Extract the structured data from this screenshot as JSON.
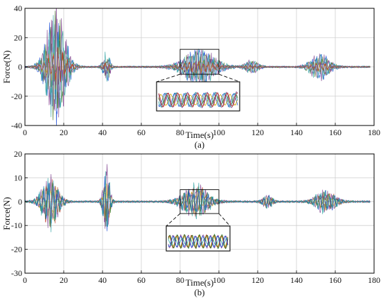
{
  "chart_data": [
    {
      "type": "line",
      "panel_label": "(a)",
      "xlabel": "Time(s)",
      "ylabel": "Force(N)",
      "xlim": [
        0,
        180
      ],
      "ylim": [
        -40,
        40
      ],
      "xticks": [
        0,
        20,
        40,
        60,
        80,
        100,
        120,
        140,
        160,
        180
      ],
      "yticks": [
        -40,
        -20,
        0,
        20,
        40
      ],
      "grid": true,
      "series_colors": [
        "#1f4fd8",
        "#c8a800",
        "#4a7a2a",
        "#7a3a8a",
        "#2aa0a0",
        "#c03a2a"
      ],
      "bursts": [
        {
          "center": 16,
          "width": 6,
          "amplitude": 38
        },
        {
          "center": 42,
          "width": 2,
          "amplitude": 10
        },
        {
          "center": 90,
          "width": 10,
          "amplitude": 11
        },
        {
          "center": 117,
          "width": 4,
          "amplitude": 4
        },
        {
          "center": 152,
          "width": 6,
          "amplitude": 8
        }
      ],
      "zoom_region": {
        "x": [
          80,
          100
        ],
        "y": [
          -5,
          12
        ]
      }
    },
    {
      "type": "line",
      "panel_label": "(b)",
      "xlabel": "Time(s)",
      "ylabel": "Force(N)",
      "xlim": [
        0,
        180
      ],
      "ylim": [
        -30,
        20
      ],
      "xticks": [
        0,
        20,
        40,
        60,
        80,
        100,
        120,
        140,
        160,
        180
      ],
      "yticks": [
        -30,
        -20,
        -10,
        0,
        10,
        20
      ],
      "grid": true,
      "series_colors": [
        "#c8a800",
        "#c03a2a",
        "#2a7a2a",
        "#7a3a8a",
        "#1f4fd8",
        "#2aa0a0"
      ],
      "bursts": [
        {
          "center": 13,
          "width": 5,
          "amplitude": 17
        },
        {
          "center": 42,
          "width": 2,
          "amplitude": 22
        },
        {
          "center": 88,
          "width": 8,
          "amplitude": 10
        },
        {
          "center": 125,
          "width": 3,
          "amplitude": 4
        },
        {
          "center": 155,
          "width": 6,
          "amplitude": 7
        }
      ],
      "zoom_region": {
        "x": [
          80,
          100
        ],
        "y": [
          -5,
          5
        ]
      }
    }
  ]
}
